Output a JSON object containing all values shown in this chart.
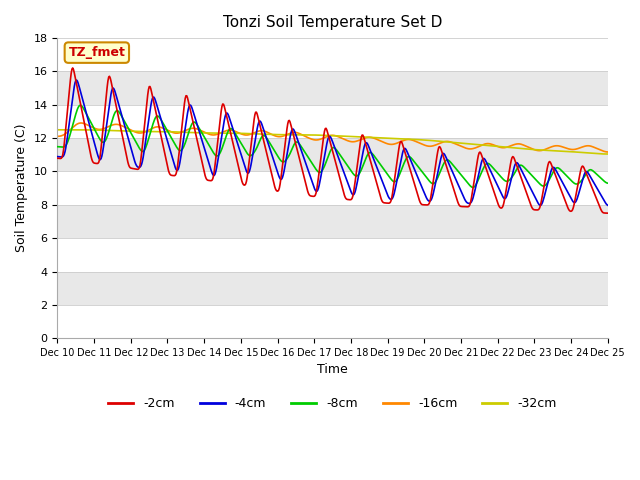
{
  "title": "Tonzi Soil Temperature Set D",
  "xlabel": "Time",
  "ylabel": "Soil Temperature (C)",
  "ylim": [
    0,
    18
  ],
  "yticks": [
    0,
    2,
    4,
    6,
    8,
    10,
    12,
    14,
    16,
    18
  ],
  "annotation_text": "TZ_fmet",
  "annotation_color": "#cc0000",
  "annotation_bg": "#ffffcc",
  "annotation_border": "#cc8800",
  "x_labels": [
    "Dec 10",
    "Dec 11",
    "Dec 12",
    "Dec 13",
    "Dec 14",
    "Dec 15",
    "Dec 16",
    "Dec 17",
    "Dec 18",
    "Dec 19",
    "Dec 20",
    "Dec 21",
    "Dec 22",
    "Dec 23",
    "Dec 24",
    "Dec 25"
  ],
  "legend_labels": [
    "-2cm",
    "-4cm",
    "-8cm",
    "-16cm",
    "-32cm"
  ],
  "legend_colors": [
    "#dd0000",
    "#0000dd",
    "#00cc00",
    "#ff8800",
    "#cccc00"
  ],
  "bg_color": "#ffffff",
  "plot_bg_white": "#ffffff",
  "plot_bg_gray": "#e8e8e8",
  "grid_color": "#cccccc",
  "days": 15,
  "n_points": 720,
  "figsize": [
    6.4,
    4.8
  ],
  "dpi": 100
}
